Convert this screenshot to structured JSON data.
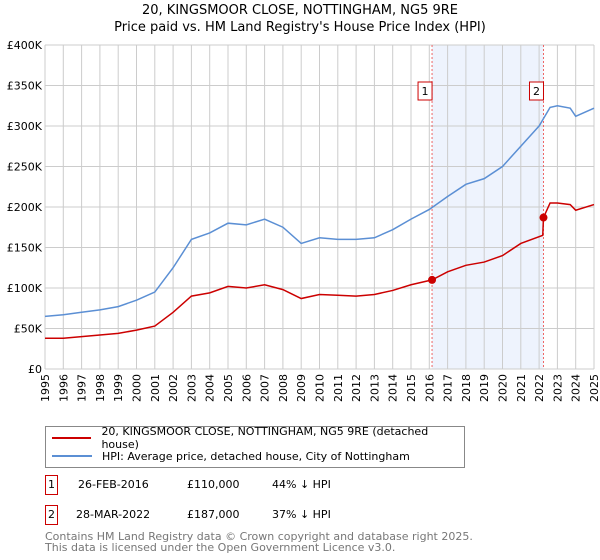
{
  "title": "20, KINGSMOOR CLOSE, NOTTINGHAM, NG5 9RE",
  "subtitle": "Price paid vs. HM Land Registry's House Price Index (HPI)",
  "legend": [
    {
      "label": "20, KINGSMOOR CLOSE, NOTTINGHAM, NG5 9RE (detached house)",
      "color": "#cc0000"
    },
    {
      "label": "HPI: Average price, detached house, City of Nottingham",
      "color": "#5b8fd4"
    }
  ],
  "transactions": [
    {
      "num": "1",
      "date": "26-FEB-2016",
      "price": "£110,000",
      "hpi": "44% ↓ HPI"
    },
    {
      "num": "2",
      "date": "28-MAR-2022",
      "price": "£187,000",
      "hpi": "37% ↓ HPI"
    }
  ],
  "footer": [
    "Contains HM Land Registry data © Crown copyright and database right 2025.",
    "This data is licensed under the Open Government Licence v3.0."
  ],
  "chart_data": {
    "type": "line",
    "title": "20, KINGSMOOR CLOSE, NOTTINGHAM, NG5 9RE",
    "xlim": [
      1995,
      2025
    ],
    "ylim": [
      0,
      400000
    ],
    "xticks": [
      1995,
      1996,
      1997,
      1998,
      1999,
      2000,
      2001,
      2002,
      2003,
      2004,
      2005,
      2006,
      2007,
      2008,
      2009,
      2010,
      2011,
      2012,
      2013,
      2014,
      2015,
      2016,
      2017,
      2018,
      2019,
      2020,
      2021,
      2022,
      2023,
      2024,
      2025
    ],
    "yticks": [
      {
        "v": 0,
        "l": "£0"
      },
      {
        "v": 50000,
        "l": "£50K"
      },
      {
        "v": 100000,
        "l": "£100K"
      },
      {
        "v": 150000,
        "l": "£150K"
      },
      {
        "v": 200000,
        "l": "£200K"
      },
      {
        "v": 250000,
        "l": "£250K"
      },
      {
        "v": 300000,
        "l": "£300K"
      },
      {
        "v": 350000,
        "l": "£350K"
      },
      {
        "v": 400000,
        "l": "£400K"
      }
    ],
    "series": [
      {
        "name": "HPI: Average price, detached house, City of Nottingham",
        "color": "#5b8fd4",
        "x": [
          1995,
          1996,
          1997,
          1998,
          1999,
          2000,
          2001,
          2002,
          2003,
          2004,
          2005,
          2006,
          2007,
          2008,
          2009,
          2010,
          2011,
          2012,
          2013,
          2014,
          2015,
          2016,
          2017,
          2018,
          2019,
          2020,
          2021,
          2022,
          2022.6,
          2023,
          2023.7,
          2024,
          2025
        ],
        "y": [
          65000,
          67000,
          70000,
          73000,
          77000,
          85000,
          95000,
          125000,
          160000,
          168000,
          180000,
          178000,
          185000,
          175000,
          155000,
          162000,
          160000,
          160000,
          162000,
          172000,
          185000,
          197000,
          213000,
          228000,
          235000,
          250000,
          275000,
          300000,
          323000,
          325000,
          322000,
          312000,
          322000
        ]
      },
      {
        "name": "20, KINGSMOOR CLOSE, NOTTINGHAM, NG5 9RE (detached house)",
        "color": "#cc0000",
        "x": [
          1995,
          1996,
          1997,
          1998,
          1999,
          2000,
          2001,
          2002,
          2003,
          2004,
          2005,
          2006,
          2007,
          2008,
          2009,
          2010,
          2011,
          2012,
          2013,
          2014,
          2015,
          2016.15,
          2017,
          2018,
          2019,
          2020,
          2021,
          2022.2,
          2022.24,
          2022.6,
          2023,
          2023.7,
          2024,
          2025
        ],
        "y": [
          38000,
          38000,
          40000,
          42000,
          44000,
          48000,
          53000,
          70000,
          90000,
          94000,
          102000,
          100000,
          104000,
          98000,
          87000,
          92000,
          91000,
          90000,
          92000,
          97000,
          104000,
          110000,
          120000,
          128000,
          132000,
          140000,
          155000,
          165000,
          187000,
          205000,
          205000,
          203000,
          196000,
          203000
        ]
      }
    ],
    "events": [
      {
        "label": "1",
        "x": 2016.15,
        "y": 110000
      },
      {
        "label": "2",
        "x": 2022.24,
        "y": 187000
      }
    ]
  }
}
